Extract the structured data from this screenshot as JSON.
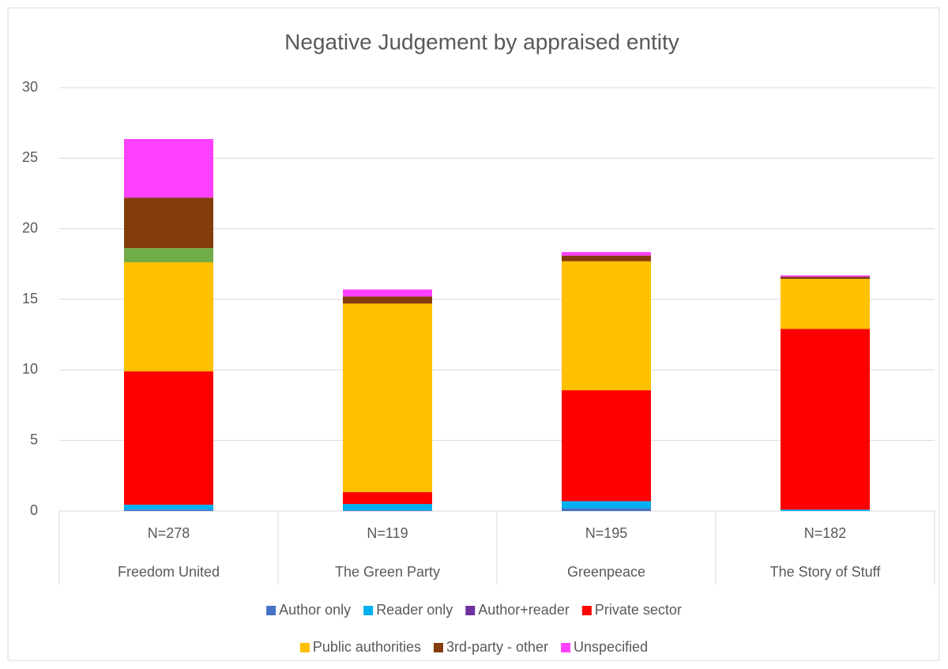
{
  "chart_data": {
    "type": "stacked_bar",
    "title": "Negative Judgement by appraised entity",
    "categories": [
      "Freedom United",
      "The Green Party",
      "Greenpeace",
      "The Story of Stuff"
    ],
    "sample_sizes": [
      "N=278",
      "N=119",
      "N=195",
      "N=182"
    ],
    "series": [
      {
        "name": "Author only",
        "color": "#4472c4",
        "values": [
          0.1,
          0.05,
          0.2,
          0
        ]
      },
      {
        "name": "Reader only",
        "color": "#00b0f0",
        "values": [
          0.35,
          0.45,
          0.5,
          0.1
        ]
      },
      {
        "name": "Author+reader",
        "color": "#7030a0",
        "values": [
          0,
          0,
          0,
          0
        ]
      },
      {
        "name": "Private sector",
        "color": "#ff0000",
        "values": [
          9.45,
          0.84,
          7.86,
          12.8
        ]
      },
      {
        "name": "Public authorities",
        "color": "#ffc000",
        "values": [
          7.73,
          13.36,
          9.14,
          3.55
        ]
      },
      {
        "name": null,
        "color": "#70ad47",
        "values": [
          1.0,
          0,
          0,
          0
        ]
      },
      {
        "name": "3rd-party - other",
        "color": "#843c0c",
        "values": [
          3.58,
          0.5,
          0.4,
          0.15
        ]
      },
      {
        "name": "Unspecified",
        "color": "#ff40ff",
        "values": [
          4.15,
          0.5,
          0.25,
          0.1
        ]
      }
    ],
    "ylim": [
      0,
      30
    ],
    "yticks": [
      0,
      5,
      10,
      15,
      20,
      25,
      30
    ],
    "grid": true,
    "legend": "bottom"
  }
}
